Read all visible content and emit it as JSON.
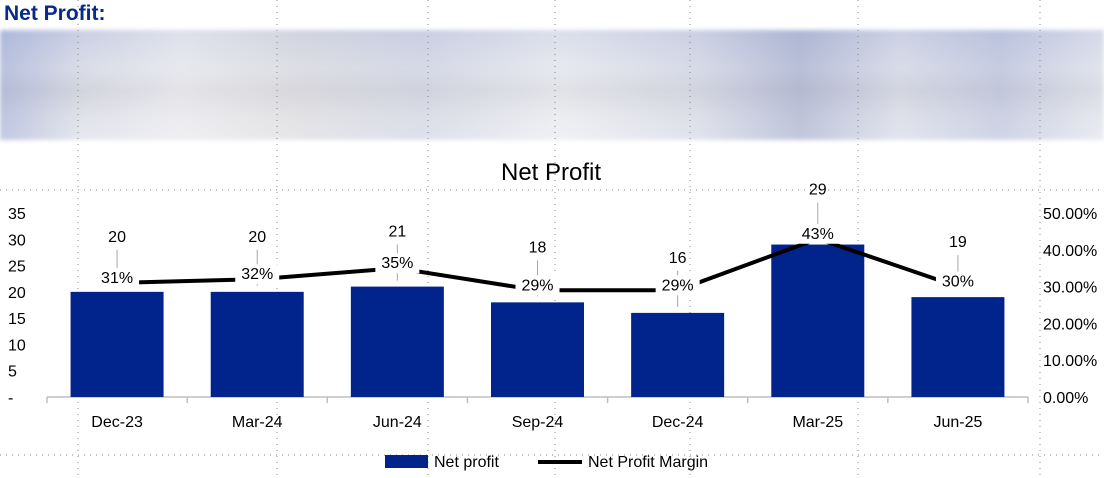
{
  "heading": "Net Profit:",
  "chart_data": {
    "type": "bar",
    "title": "Net Profit",
    "categories": [
      "Dec-23",
      "Mar-24",
      "Jun-24",
      "Sep-24",
      "Dec-24",
      "Mar-25",
      "Jun-25"
    ],
    "series": [
      {
        "name": "Net profit",
        "type": "bar",
        "axis": "left",
        "values": [
          20,
          20,
          21,
          18,
          16,
          29,
          19
        ],
        "labels": [
          "20",
          "20",
          "21",
          "18",
          "16",
          "29",
          "19"
        ],
        "color": "#00238c"
      },
      {
        "name": "Net Profit Margin",
        "type": "line",
        "axis": "right",
        "values": [
          0.31,
          0.32,
          0.35,
          0.29,
          0.29,
          0.43,
          0.3
        ],
        "labels": [
          "31%",
          "32%",
          "35%",
          "29%",
          "29%",
          "43%",
          "30%"
        ],
        "color": "#000000"
      }
    ],
    "y_left": {
      "ylim": [
        0,
        35
      ],
      "ticks": [
        0,
        5,
        10,
        15,
        20,
        25,
        30,
        35
      ],
      "tick_labels": [
        "-",
        "5",
        "10",
        "15",
        "20",
        "25",
        "30",
        "35"
      ]
    },
    "y_right": {
      "ylim": [
        0,
        0.5
      ],
      "ticks": [
        0,
        0.1,
        0.2,
        0.3,
        0.4,
        0.5
      ],
      "tick_labels": [
        "0.00%",
        "10.00%",
        "20.00%",
        "30.00%",
        "40.00%",
        "50.00%"
      ]
    },
    "legend": "bottom",
    "grid": false
  }
}
